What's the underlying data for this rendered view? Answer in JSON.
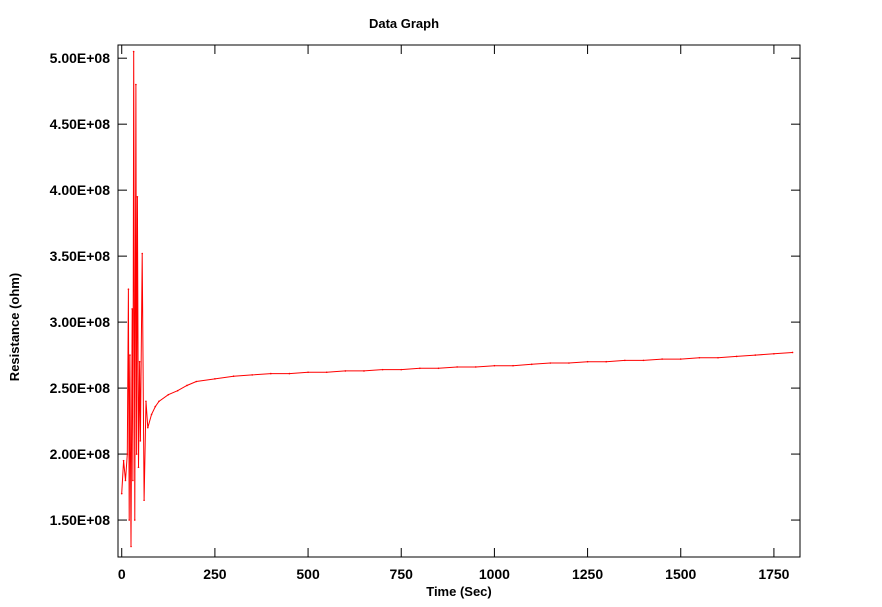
{
  "chart_data": {
    "type": "line",
    "title": "Data Graph",
    "xlabel": "Time (Sec)",
    "ylabel": "Resistance (ohm)",
    "xlim": [
      -10,
      1820
    ],
    "ylim": [
      122000000,
      510000000
    ],
    "x_ticks": [
      0,
      250,
      500,
      750,
      1000,
      1250,
      1500,
      1750
    ],
    "x_tick_labels": [
      "0",
      "250",
      "500",
      "750",
      "1000",
      "1250",
      "1500",
      "1750"
    ],
    "y_ticks": [
      150000000,
      200000000,
      250000000,
      300000000,
      350000000,
      400000000,
      450000000,
      500000000
    ],
    "y_tick_labels": [
      "1.50E+08",
      "2.00E+08",
      "2.50E+08",
      "3.00E+08",
      "3.50E+08",
      "4.00E+08",
      "4.50E+08",
      "5.00E+08"
    ],
    "grid": false,
    "series_color": "#ff0000",
    "series": [
      {
        "x": [
          0,
          5,
          10,
          15,
          18,
          20,
          22,
          25,
          28,
          30,
          32,
          35,
          38,
          40,
          42,
          45,
          48,
          50,
          55,
          60,
          65,
          70,
          80,
          90,
          100,
          125,
          150,
          175,
          200,
          250,
          300,
          350,
          400,
          450,
          500,
          550,
          600,
          650,
          700,
          750,
          800,
          850,
          900,
          950,
          1000,
          1050,
          1100,
          1150,
          1200,
          1250,
          1300,
          1350,
          1400,
          1450,
          1500,
          1550,
          1600,
          1650,
          1700,
          1750,
          1800
        ],
        "y": [
          170000000,
          195000000,
          180000000,
          200000000,
          325000000,
          150000000,
          275000000,
          130000000,
          310000000,
          180000000,
          505000000,
          150000000,
          480000000,
          200000000,
          395000000,
          190000000,
          270000000,
          210000000,
          352000000,
          165000000,
          240000000,
          220000000,
          230000000,
          236000000,
          240000000,
          245000000,
          248000000,
          252000000,
          255000000,
          257000000,
          259000000,
          260000000,
          261000000,
          261000000,
          262000000,
          262000000,
          263000000,
          263000000,
          264000000,
          264000000,
          265000000,
          265000000,
          266000000,
          266000000,
          267000000,
          267000000,
          268000000,
          269000000,
          269000000,
          270000000,
          270000000,
          271000000,
          271000000,
          272000000,
          272000000,
          273000000,
          273000000,
          274000000,
          275000000,
          276000000,
          277000000
        ]
      }
    ]
  }
}
